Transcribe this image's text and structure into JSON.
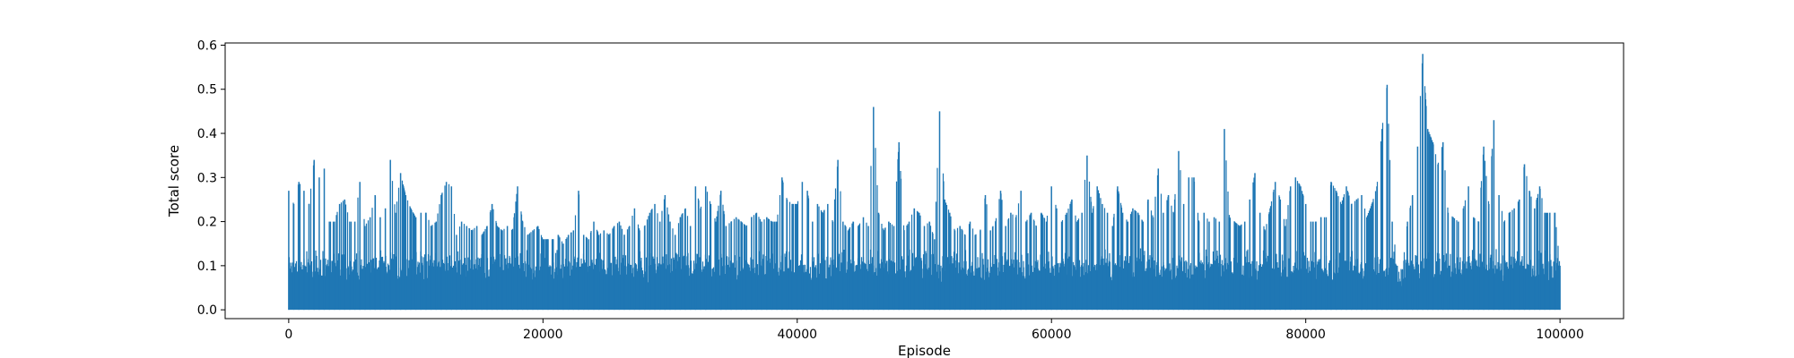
{
  "chart_data": {
    "type": "line",
    "title": "",
    "xlabel": "Episode",
    "ylabel": "Total score",
    "xlim": [
      -5000,
      105000
    ],
    "ylim": [
      -0.02,
      0.605
    ],
    "x_ticks": [
      0,
      20000,
      40000,
      60000,
      80000,
      100000
    ],
    "x_tick_labels": [
      "0",
      "20000",
      "40000",
      "60000",
      "80000",
      "100000"
    ],
    "y_ticks": [
      0.0,
      0.1,
      0.2,
      0.3,
      0.4,
      0.5,
      0.6
    ],
    "y_tick_labels": [
      "0.0",
      "0.1",
      "0.2",
      "0.3",
      "0.4",
      "0.5",
      "0.6"
    ],
    "grid": false,
    "legend": null,
    "series": [
      {
        "color": "#1f77b4",
        "episodes": 100000,
        "min_value": 0.0,
        "envelope": [
          [
            0,
            0.27
          ],
          [
            400,
            0.24
          ],
          [
            800,
            0.29
          ],
          [
            1200,
            0.27
          ],
          [
            1600,
            0.24
          ],
          [
            2000,
            0.34
          ],
          [
            2400,
            0.3
          ],
          [
            2800,
            0.32
          ],
          [
            3200,
            0.2
          ],
          [
            3600,
            0.2
          ],
          [
            4000,
            0.24
          ],
          [
            4400,
            0.25
          ],
          [
            4800,
            0.2
          ],
          [
            5200,
            0.2
          ],
          [
            5600,
            0.29
          ],
          [
            6000,
            0.19
          ],
          [
            6400,
            0.21
          ],
          [
            6800,
            0.26
          ],
          [
            7200,
            0.21
          ],
          [
            7600,
            0.23
          ],
          [
            8000,
            0.34
          ],
          [
            8400,
            0.22
          ],
          [
            8800,
            0.31
          ],
          [
            9200,
            0.26
          ],
          [
            9600,
            0.23
          ],
          [
            10000,
            0.21
          ],
          [
            10400,
            0.22
          ],
          [
            10800,
            0.22
          ],
          [
            11200,
            0.19
          ],
          [
            11600,
            0.2
          ],
          [
            12000,
            0.26
          ],
          [
            12400,
            0.29
          ],
          [
            12800,
            0.28
          ],
          [
            13200,
            0.17
          ],
          [
            13600,
            0.2
          ],
          [
            14000,
            0.19
          ],
          [
            14400,
            0.18
          ],
          [
            14800,
            0.19
          ],
          [
            15200,
            0.17
          ],
          [
            15600,
            0.19
          ],
          [
            16000,
            0.24
          ],
          [
            16400,
            0.19
          ],
          [
            16800,
            0.18
          ],
          [
            17200,
            0.19
          ],
          [
            17600,
            0.18
          ],
          [
            18000,
            0.28
          ],
          [
            18400,
            0.2
          ],
          [
            18800,
            0.17
          ],
          [
            19200,
            0.18
          ],
          [
            19600,
            0.19
          ],
          [
            20000,
            0.16
          ],
          [
            20400,
            0.16
          ],
          [
            20800,
            0.16
          ],
          [
            21200,
            0.17
          ],
          [
            21600,
            0.15
          ],
          [
            22000,
            0.17
          ],
          [
            22400,
            0.18
          ],
          [
            22800,
            0.27
          ],
          [
            23200,
            0.17
          ],
          [
            23600,
            0.16
          ],
          [
            24000,
            0.2
          ],
          [
            24400,
            0.17
          ],
          [
            24800,
            0.18
          ],
          [
            25200,
            0.17
          ],
          [
            25600,
            0.19
          ],
          [
            26000,
            0.2
          ],
          [
            26400,
            0.17
          ],
          [
            26800,
            0.19
          ],
          [
            27200,
            0.23
          ],
          [
            27600,
            0.18
          ],
          [
            28000,
            0.19
          ],
          [
            28400,
            0.22
          ],
          [
            28800,
            0.24
          ],
          [
            29200,
            0.2
          ],
          [
            29600,
            0.26
          ],
          [
            30000,
            0.2
          ],
          [
            30400,
            0.17
          ],
          [
            30800,
            0.21
          ],
          [
            31200,
            0.23
          ],
          [
            31600,
            0.19
          ],
          [
            32000,
            0.28
          ],
          [
            32400,
            0.23
          ],
          [
            32800,
            0.28
          ],
          [
            33200,
            0.24
          ],
          [
            33600,
            0.2
          ],
          [
            34000,
            0.27
          ],
          [
            34400,
            0.19
          ],
          [
            34800,
            0.2
          ],
          [
            35200,
            0.21
          ],
          [
            35600,
            0.2
          ],
          [
            36000,
            0.19
          ],
          [
            36400,
            0.21
          ],
          [
            36800,
            0.22
          ],
          [
            37200,
            0.2
          ],
          [
            37600,
            0.21
          ],
          [
            38000,
            0.2
          ],
          [
            38400,
            0.2
          ],
          [
            38800,
            0.3
          ],
          [
            39200,
            0.25
          ],
          [
            39600,
            0.24
          ],
          [
            40000,
            0.24
          ],
          [
            40400,
            0.29
          ],
          [
            40800,
            0.27
          ],
          [
            41200,
            0.2
          ],
          [
            41600,
            0.24
          ],
          [
            42000,
            0.22
          ],
          [
            42400,
            0.24
          ],
          [
            42800,
            0.2
          ],
          [
            43200,
            0.34
          ],
          [
            43600,
            0.2
          ],
          [
            44000,
            0.18
          ],
          [
            44400,
            0.2
          ],
          [
            44800,
            0.19
          ],
          [
            45200,
            0.21
          ],
          [
            45600,
            0.19
          ],
          [
            46000,
            0.46
          ],
          [
            46400,
            0.22
          ],
          [
            46800,
            0.18
          ],
          [
            47200,
            0.2
          ],
          [
            47600,
            0.19
          ],
          [
            48000,
            0.38
          ],
          [
            48400,
            0.18
          ],
          [
            48800,
            0.2
          ],
          [
            49200,
            0.23
          ],
          [
            49600,
            0.22
          ],
          [
            50000,
            0.19
          ],
          [
            50400,
            0.2
          ],
          [
            50800,
            0.16
          ],
          [
            51200,
            0.45
          ],
          [
            51600,
            0.25
          ],
          [
            52000,
            0.22
          ],
          [
            52400,
            0.18
          ],
          [
            52800,
            0.19
          ],
          [
            53200,
            0.17
          ],
          [
            53600,
            0.2
          ],
          [
            54000,
            0.17
          ],
          [
            54400,
            0.18
          ],
          [
            54800,
            0.26
          ],
          [
            55200,
            0.18
          ],
          [
            55600,
            0.2
          ],
          [
            56000,
            0.27
          ],
          [
            56400,
            0.19
          ],
          [
            56800,
            0.22
          ],
          [
            57200,
            0.21
          ],
          [
            57600,
            0.27
          ],
          [
            58000,
            0.2
          ],
          [
            58400,
            0.22
          ],
          [
            58800,
            0.19
          ],
          [
            59200,
            0.22
          ],
          [
            59600,
            0.2
          ],
          [
            60000,
            0.28
          ],
          [
            60400,
            0.23
          ],
          [
            60800,
            0.2
          ],
          [
            61200,
            0.22
          ],
          [
            61600,
            0.25
          ],
          [
            62000,
            0.2
          ],
          [
            62400,
            0.22
          ],
          [
            62800,
            0.35
          ],
          [
            63200,
            0.22
          ],
          [
            63600,
            0.28
          ],
          [
            64000,
            0.24
          ],
          [
            64400,
            0.22
          ],
          [
            64800,
            0.19
          ],
          [
            65200,
            0.28
          ],
          [
            65600,
            0.22
          ],
          [
            66000,
            0.2
          ],
          [
            66400,
            0.23
          ],
          [
            66800,
            0.22
          ],
          [
            67200,
            0.2
          ],
          [
            67600,
            0.25
          ],
          [
            68000,
            0.21
          ],
          [
            68400,
            0.32
          ],
          [
            68800,
            0.22
          ],
          [
            69200,
            0.26
          ],
          [
            69600,
            0.22
          ],
          [
            70000,
            0.36
          ],
          [
            70400,
            0.24
          ],
          [
            70800,
            0.3
          ],
          [
            71200,
            0.3
          ],
          [
            71600,
            0.2
          ],
          [
            72000,
            0.22
          ],
          [
            72400,
            0.2
          ],
          [
            72800,
            0.21
          ],
          [
            73200,
            0.2
          ],
          [
            73600,
            0.41
          ],
          [
            74000,
            0.21
          ],
          [
            74400,
            0.2
          ],
          [
            74800,
            0.19
          ],
          [
            75200,
            0.2
          ],
          [
            75600,
            0.25
          ],
          [
            76000,
            0.31
          ],
          [
            76400,
            0.22
          ],
          [
            76800,
            0.18
          ],
          [
            77200,
            0.23
          ],
          [
            77600,
            0.29
          ],
          [
            78000,
            0.25
          ],
          [
            78400,
            0.19
          ],
          [
            78800,
            0.28
          ],
          [
            79200,
            0.3
          ],
          [
            79600,
            0.28
          ],
          [
            80000,
            0.24
          ],
          [
            80400,
            0.2
          ],
          [
            80800,
            0.2
          ],
          [
            81200,
            0.21
          ],
          [
            81600,
            0.21
          ],
          [
            82000,
            0.29
          ],
          [
            82400,
            0.27
          ],
          [
            82800,
            0.24
          ],
          [
            83200,
            0.28
          ],
          [
            83600,
            0.24
          ],
          [
            84000,
            0.25
          ],
          [
            84400,
            0.26
          ],
          [
            84800,
            0.21
          ],
          [
            85200,
            0.24
          ],
          [
            85600,
            0.28
          ],
          [
            86000,
            0.41
          ],
          [
            86400,
            0.51
          ],
          [
            86800,
            0.2
          ],
          [
            87200,
            0.1
          ],
          [
            87600,
            0.09
          ],
          [
            88000,
            0.2
          ],
          [
            88400,
            0.26
          ],
          [
            88800,
            0.37
          ],
          [
            89200,
            0.58
          ],
          [
            89600,
            0.41
          ],
          [
            90000,
            0.38
          ],
          [
            90400,
            0.33
          ],
          [
            90800,
            0.38
          ],
          [
            91200,
            0.22
          ],
          [
            91600,
            0.21
          ],
          [
            92000,
            0.2
          ],
          [
            92400,
            0.23
          ],
          [
            92800,
            0.28
          ],
          [
            93200,
            0.21
          ],
          [
            93600,
            0.2
          ],
          [
            94000,
            0.37
          ],
          [
            94400,
            0.24
          ],
          [
            94800,
            0.43
          ],
          [
            95200,
            0.26
          ],
          [
            95600,
            0.2
          ],
          [
            96000,
            0.22
          ],
          [
            96400,
            0.23
          ],
          [
            96800,
            0.25
          ],
          [
            97200,
            0.33
          ],
          [
            97600,
            0.27
          ],
          [
            98000,
            0.23
          ],
          [
            98400,
            0.28
          ],
          [
            98800,
            0.22
          ],
          [
            99200,
            0.22
          ],
          [
            99600,
            0.22
          ],
          [
            100000,
            0.1
          ]
        ]
      }
    ]
  }
}
